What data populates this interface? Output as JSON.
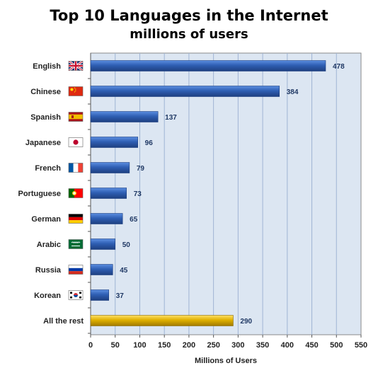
{
  "chart_data": {
    "type": "bar",
    "orientation": "horizontal",
    "title": "Top 10 Languages in the Internet",
    "subtitle": "millions of users",
    "xlabel": "Millions of Users",
    "ylabel": "",
    "categories": [
      "English",
      "Chinese",
      "Spanish",
      "Japanese",
      "French",
      "Portuguese",
      "German",
      "Arabic",
      "Russia",
      "Korean",
      "All the rest"
    ],
    "values": [
      478,
      384,
      137,
      96,
      79,
      73,
      65,
      50,
      45,
      37,
      290
    ],
    "flags": [
      "uk-flag-icon",
      "china-flag-icon",
      "spain-flag-icon",
      "japan-flag-icon",
      "france-flag-icon",
      "portugal-flag-icon",
      "germany-flag-icon",
      "saudi-arabia-flag-icon",
      "russia-flag-icon",
      "south-korea-flag-icon",
      null
    ],
    "xlim": [
      0,
      550
    ],
    "xticks": [
      0,
      50,
      100,
      150,
      200,
      250,
      300,
      350,
      400,
      450,
      500,
      550
    ],
    "grid": true,
    "colors": {
      "bar": "#2f5fb3",
      "bar_highlight": "#5b8ee0",
      "rest_bar": "#e0b000",
      "rest_bar_highlight": "#ffe066",
      "plot_background": "#dce6f2",
      "gridline": "#9fb4d4",
      "value_label": "#1f3864"
    }
  }
}
